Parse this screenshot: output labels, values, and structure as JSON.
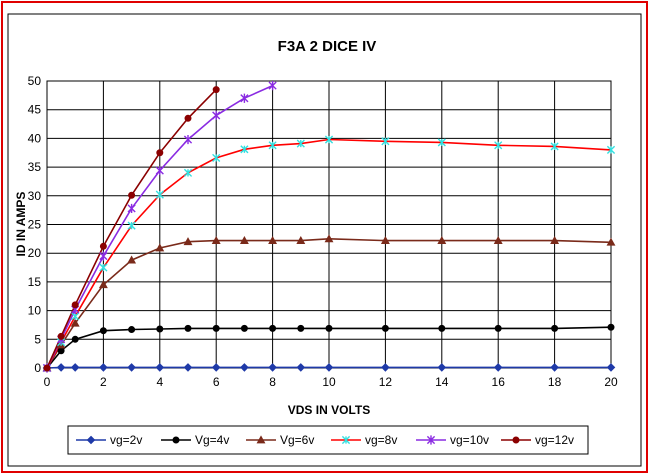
{
  "chart_data": {
    "type": "line",
    "title": "F3A 2 DICE IV",
    "xlabel": "VDS IN VOLTS",
    "ylabel": "ID IN AMPS",
    "xlim": [
      0,
      20
    ],
    "ylim": [
      0,
      50
    ],
    "x_ticks": [
      0,
      2,
      4,
      6,
      8,
      10,
      12,
      14,
      16,
      18,
      20
    ],
    "y_ticks": [
      0,
      5,
      10,
      15,
      20,
      25,
      30,
      35,
      40,
      45,
      50
    ],
    "grid": true,
    "legend_position": "bottom",
    "series": [
      {
        "name": "vg=2v",
        "color": "#1f3aa8",
        "marker": "diamond",
        "points": [
          [
            0,
            0
          ],
          [
            0.5,
            0.1
          ],
          [
            1,
            0.1
          ],
          [
            2,
            0.1
          ],
          [
            3,
            0.1
          ],
          [
            4,
            0.1
          ],
          [
            5,
            0.1
          ],
          [
            6,
            0.1
          ],
          [
            7,
            0.1
          ],
          [
            8,
            0.1
          ],
          [
            9,
            0.1
          ],
          [
            10,
            0.1
          ],
          [
            12,
            0.1
          ],
          [
            14,
            0.1
          ],
          [
            16,
            0.1
          ],
          [
            18,
            0.1
          ],
          [
            20,
            0.1
          ]
        ]
      },
      {
        "name": "Vg=4v",
        "color": "#000000",
        "marker": "dot",
        "points": [
          [
            0,
            0
          ],
          [
            0.5,
            3
          ],
          [
            1,
            5
          ],
          [
            2,
            6.5
          ],
          [
            3,
            6.7
          ],
          [
            4,
            6.8
          ],
          [
            5,
            6.9
          ],
          [
            6,
            6.9
          ],
          [
            7,
            6.9
          ],
          [
            8,
            6.9
          ],
          [
            9,
            6.9
          ],
          [
            10,
            6.9
          ],
          [
            12,
            6.9
          ],
          [
            14,
            6.9
          ],
          [
            16,
            6.9
          ],
          [
            18,
            6.9
          ],
          [
            20,
            7.1
          ]
        ]
      },
      {
        "name": "Vg=6v",
        "color": "#7a2a1a",
        "marker": "triangle",
        "points": [
          [
            0,
            0
          ],
          [
            0.5,
            4
          ],
          [
            1,
            7.8
          ],
          [
            2,
            14.5
          ],
          [
            3,
            18.8
          ],
          [
            4,
            20.9
          ],
          [
            5,
            22
          ],
          [
            6,
            22.2
          ],
          [
            7,
            22.2
          ],
          [
            8,
            22.2
          ],
          [
            9,
            22.2
          ],
          [
            10,
            22.5
          ],
          [
            12,
            22.2
          ],
          [
            14,
            22.2
          ],
          [
            16,
            22.2
          ],
          [
            18,
            22.2
          ],
          [
            20,
            21.9
          ]
        ]
      },
      {
        "name": "vg=8v",
        "color": "#ff0000",
        "line_color": "#ff0000",
        "marker_color": "#33e0e0",
        "marker": "asterisk",
        "points": [
          [
            0,
            0
          ],
          [
            0.5,
            4.5
          ],
          [
            1,
            9
          ],
          [
            2,
            17.5
          ],
          [
            3,
            24.8
          ],
          [
            4,
            30.2
          ],
          [
            5,
            34
          ],
          [
            6,
            36.6
          ],
          [
            7,
            38.1
          ],
          [
            8,
            38.8
          ],
          [
            9,
            39.1
          ],
          [
            10,
            39.8
          ],
          [
            12,
            39.5
          ],
          [
            14,
            39.3
          ],
          [
            16,
            38.8
          ],
          [
            18,
            38.6
          ],
          [
            20,
            38
          ]
        ]
      },
      {
        "name": "vg=10v",
        "color": "#8a2be2",
        "marker": "star",
        "points": [
          [
            0,
            0
          ],
          [
            0.5,
            5
          ],
          [
            1,
            10.2
          ],
          [
            2,
            19.5
          ],
          [
            3,
            27.8
          ],
          [
            4,
            34.4
          ],
          [
            5,
            39.8
          ],
          [
            6,
            44
          ],
          [
            7,
            47
          ],
          [
            8,
            49.2
          ]
        ]
      },
      {
        "name": "vg=12v",
        "color": "#8b0000",
        "marker": "dot",
        "points": [
          [
            0,
            0
          ],
          [
            0.5,
            5.5
          ],
          [
            1,
            11
          ],
          [
            2,
            21.2
          ],
          [
            3,
            30.1
          ],
          [
            4,
            37.5
          ],
          [
            5,
            43.5
          ],
          [
            6,
            48.5
          ]
        ]
      }
    ]
  }
}
